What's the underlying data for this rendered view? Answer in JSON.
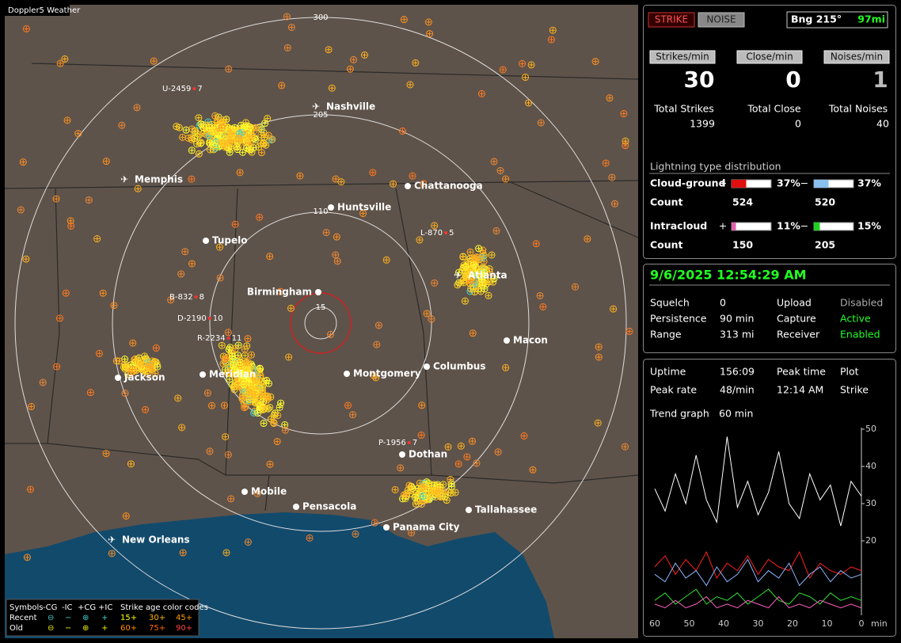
{
  "map": {
    "title": "Doppler5 Weather",
    "range_labels": [
      "300",
      "205",
      "110",
      "15"
    ],
    "cities": [
      "Nashville",
      "Memphis",
      "Chattanooga",
      "Huntsville",
      "Tupelo",
      "Atlanta",
      "Birmingham",
      "Macon",
      "Jackson",
      "Meridian",
      "Montgomery",
      "Columbus",
      "Dothan",
      "Mobile",
      "Pensacola",
      "Tallahassee",
      "Panama City",
      "New Orleans"
    ],
    "stations": [
      {
        "id": "U-2459",
        "value": "7"
      },
      {
        "id": "L-870",
        "value": "5"
      },
      {
        "id": "B-832",
        "value": "8"
      },
      {
        "id": "D-2190",
        "value": "10"
      },
      {
        "id": "R-2234",
        "value": "11"
      },
      {
        "id": "P-1956",
        "value": "7"
      }
    ],
    "legend": {
      "symbols": "Symbols",
      "types": [
        "-CG",
        "-IC",
        "+CG",
        "+IC"
      ],
      "age_title": "Strike age color codes",
      "rows": [
        "Recent",
        "Old"
      ],
      "recent_ages": [
        "15+",
        "30+",
        "45+"
      ],
      "old_ages": [
        "60+",
        "75+",
        "90+"
      ]
    }
  },
  "panel": {
    "strike": "STRIKE",
    "noise": "NOISE",
    "bearing": "Bng 215°",
    "distance": "97mi",
    "rates": [
      {
        "label": "Strikes/min",
        "value": 30
      },
      {
        "label": "Close/min",
        "value": 0
      },
      {
        "label": "Noises/min",
        "value": 1
      }
    ],
    "totals": [
      {
        "label": "Total Strikes",
        "value": 1399
      },
      {
        "label": "Total Close",
        "value": 0
      },
      {
        "label": "Total Noises",
        "value": 40
      }
    ],
    "distribution": {
      "title": "Lightning type distribution",
      "count_label": "Count",
      "rows": [
        {
          "name": "Cloud-ground",
          "pos": {
            "value": 37,
            "label": "37%"
          },
          "neg": {
            "value": 37,
            "label": "37%"
          },
          "pos_count": 524,
          "neg_count": 520
        },
        {
          "name": "Intracloud",
          "pos": {
            "value": 11,
            "label": "11%"
          },
          "neg": {
            "value": 15,
            "label": "15%"
          },
          "pos_count": 150,
          "neg_count": 205
        }
      ]
    },
    "datetime": "9/6/2025 12:54:29 AM",
    "settings": [
      [
        "Squelch",
        "0",
        "Upload",
        "Disabled"
      ],
      [
        "Persistence",
        "90 min",
        "Capture",
        "Active"
      ],
      [
        "Range",
        "313 mi",
        "Receiver",
        "Enabled"
      ]
    ],
    "stats": [
      [
        "Uptime",
        "156:09",
        "Peak time",
        "Plot"
      ],
      [
        "Peak rate",
        "48/min",
        "12:14 AM",
        "Strike"
      ]
    ],
    "trend_label": "Trend graph",
    "trend_span": "60 min"
  },
  "chart_data": {
    "type": "line",
    "x": [
      60,
      57,
      54,
      51,
      48,
      45,
      42,
      39,
      36,
      33,
      30,
      27,
      24,
      21,
      18,
      15,
      12,
      9,
      6,
      3,
      0
    ],
    "xlim": [
      60,
      0
    ],
    "xticks": [
      60,
      50,
      40,
      30,
      20,
      10,
      0
    ],
    "xlabel": "min",
    "ylim": [
      0,
      50
    ],
    "yticks": [
      50,
      40,
      30,
      20
    ],
    "series": [
      {
        "color": "#ffffff",
        "values": [
          34,
          28,
          38,
          30,
          43,
          31,
          25,
          48,
          29,
          36,
          27,
          33,
          44,
          30,
          26,
          38,
          31,
          35,
          24,
          36,
          32
        ]
      },
      {
        "color": "#ff2020",
        "values": [
          13,
          16,
          11,
          15,
          12,
          17,
          10,
          14,
          12,
          16,
          11,
          15,
          13,
          12,
          17,
          10,
          14,
          12,
          11,
          13,
          12
        ]
      },
      {
        "color": "#8ab8ff",
        "values": [
          11,
          9,
          14,
          10,
          12,
          8,
          13,
          9,
          11,
          15,
          9,
          12,
          10,
          14,
          8,
          11,
          13,
          9,
          12,
          10,
          11
        ]
      },
      {
        "color": "#30e030",
        "values": [
          4,
          6,
          3,
          5,
          7,
          3,
          5,
          4,
          6,
          3,
          5,
          7,
          4,
          3,
          6,
          5,
          3,
          6,
          4,
          5,
          4
        ]
      },
      {
        "color": "#ff60c0",
        "values": [
          3,
          2,
          4,
          2,
          3,
          5,
          2,
          3,
          2,
          4,
          3,
          2,
          5,
          2,
          3,
          2,
          4,
          3,
          2,
          3,
          2
        ]
      }
    ]
  }
}
